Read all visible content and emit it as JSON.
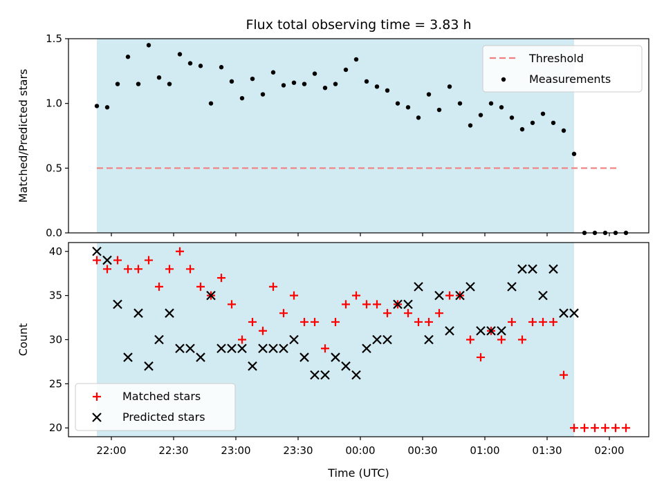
{
  "chart_data": [
    {
      "type": "scatter",
      "title": "Flux total observing time = 3.83 h",
      "xlabel": "",
      "ylabel": "Matched/Predicted stars",
      "x_tick_labels_visible": false,
      "x_ticks_minutes": [
        0,
        30,
        60,
        90,
        120,
        150,
        180,
        210,
        240
      ],
      "ylim": [
        0.0,
        1.5
      ],
      "y_ticks": [
        "0.0",
        "0.5",
        "1.0",
        "1.5"
      ],
      "observing_window_minutes": [
        -7,
        223
      ],
      "observing_window_color": "#add8e6",
      "threshold": {
        "name": "Threshold",
        "value": 0.5,
        "x_range_minutes": [
          -7,
          245
        ],
        "color": "#f08080"
      },
      "series": [
        {
          "name": "Measurements",
          "color": "#000000",
          "marker": "dot",
          "x_minutes": [
            -7,
            -2,
            3,
            8,
            13,
            18,
            23,
            28,
            33,
            38,
            43,
            48,
            53,
            58,
            63,
            68,
            73,
            78,
            83,
            88,
            93,
            98,
            103,
            108,
            113,
            118,
            123,
            128,
            133,
            138,
            143,
            148,
            153,
            158,
            163,
            168,
            173,
            178,
            183,
            188,
            193,
            198,
            203,
            208,
            213,
            218,
            223,
            228,
            233,
            238,
            243,
            248
          ],
          "values": [
            0.98,
            0.97,
            1.15,
            1.36,
            1.15,
            1.45,
            1.2,
            1.15,
            1.38,
            1.31,
            1.29,
            1.0,
            1.28,
            1.17,
            1.04,
            1.19,
            1.07,
            1.24,
            1.14,
            1.16,
            1.15,
            1.23,
            1.12,
            1.15,
            1.26,
            1.34,
            1.17,
            1.13,
            1.1,
            1.0,
            0.97,
            0.89,
            1.07,
            0.95,
            1.13,
            1.0,
            0.83,
            0.91,
            1.0,
            0.97,
            0.89,
            0.8,
            0.85,
            0.92,
            0.85,
            0.79,
            0.61,
            0.0,
            0.0,
            0.0,
            0.0,
            0.0
          ]
        }
      ],
      "legend": "top-right"
    },
    {
      "type": "scatter",
      "title": "",
      "xlabel": "Time (UTC)",
      "ylabel": "Count",
      "ylim": [
        19,
        41
      ],
      "y_ticks": [
        "20",
        "25",
        "30",
        "35",
        "40"
      ],
      "x_ticks_minutes": [
        0,
        30,
        60,
        90,
        120,
        150,
        180,
        210,
        240
      ],
      "x_tick_labels": [
        "22:00",
        "22:30",
        "23:00",
        "23:30",
        "00:00",
        "00:30",
        "01:00",
        "01:30",
        "02:00"
      ],
      "x_origin_time": "22:00",
      "observing_window_minutes": [
        -7,
        223
      ],
      "observing_window_color": "#add8e6",
      "series": [
        {
          "name": "Matched stars",
          "color": "#ff0000",
          "marker": "plus",
          "x_minutes": [
            -7,
            -2,
            3,
            8,
            13,
            18,
            23,
            28,
            33,
            38,
            43,
            48,
            53,
            58,
            63,
            68,
            73,
            78,
            83,
            88,
            93,
            98,
            103,
            108,
            113,
            118,
            123,
            128,
            133,
            138,
            143,
            148,
            153,
            158,
            163,
            168,
            173,
            178,
            183,
            188,
            193,
            198,
            203,
            208,
            213,
            218,
            223,
            228,
            233,
            238,
            243,
            248
          ],
          "values": [
            39,
            38,
            39,
            38,
            38,
            39,
            36,
            38,
            40,
            38,
            36,
            35,
            37,
            34,
            30,
            32,
            31,
            36,
            33,
            35,
            32,
            32,
            29,
            32,
            34,
            35,
            34,
            34,
            33,
            34,
            33,
            32,
            32,
            33,
            35,
            35,
            30,
            28,
            31,
            30,
            32,
            30,
            32,
            32,
            32,
            26,
            20,
            20,
            20,
            20,
            20,
            20
          ]
        },
        {
          "name": "Predicted stars",
          "color": "#000000",
          "marker": "x",
          "x_minutes": [
            -7,
            -2,
            3,
            8,
            13,
            18,
            23,
            28,
            33,
            38,
            43,
            48,
            53,
            58,
            63,
            68,
            73,
            78,
            83,
            88,
            93,
            98,
            103,
            108,
            113,
            118,
            123,
            128,
            133,
            138,
            143,
            148,
            153,
            158,
            163,
            168,
            173,
            178,
            183,
            188,
            193,
            198,
            203,
            208,
            213,
            218,
            223
          ],
          "values": [
            40,
            39,
            34,
            28,
            33,
            27,
            30,
            33,
            29,
            29,
            28,
            35,
            29,
            29,
            29,
            27,
            29,
            29,
            29,
            30,
            28,
            26,
            26,
            28,
            27,
            26,
            29,
            30,
            30,
            34,
            34,
            36,
            30,
            35,
            31,
            35,
            36,
            31,
            31,
            31,
            36,
            38,
            38,
            35,
            38,
            33,
            33
          ]
        }
      ],
      "legend": "bottom-left"
    }
  ]
}
